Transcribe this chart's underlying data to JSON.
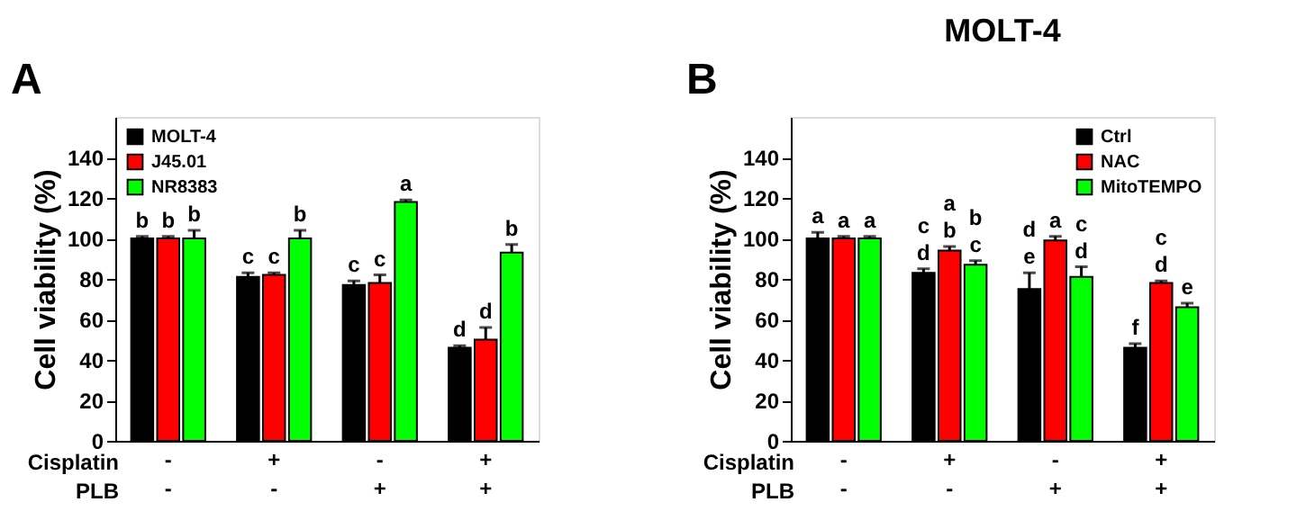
{
  "chart_data": [
    {
      "type": "bar",
      "annotations": [
        "A",
        "Cisplatin",
        "PLB"
      ],
      "ylabel": "Cell viability (%)",
      "categories": [
        "-\n-",
        "+\n-",
        "-\n+",
        "+\n+"
      ],
      "ylim": [
        0,
        160
      ],
      "yticks": [
        0,
        20,
        40,
        60,
        80,
        100,
        120,
        140
      ],
      "grid": false,
      "legend": "top left",
      "series": [
        {
          "name": "MOLT-4",
          "color": "#000000",
          "values": [
            100,
            81,
            77,
            46
          ],
          "errors": [
            [
              100,
              101
            ],
            [
              81,
              83
            ],
            [
              77,
              79
            ],
            [
              46,
              47
            ]
          ],
          "value_labels": [
            "b",
            "c",
            "c",
            "d"
          ]
        },
        {
          "name": "J45.01",
          "color": "#ff0000",
          "values": [
            100,
            82,
            78,
            50
          ],
          "errors": [
            [
              100,
              101
            ],
            [
              82,
              83
            ],
            [
              78,
              82
            ],
            [
              50,
              56
            ]
          ],
          "value_labels": [
            "b",
            "c",
            "c",
            "d"
          ]
        },
        {
          "name": "NR8383",
          "color": "#00ff00",
          "values": [
            100,
            100,
            118,
            93
          ],
          "errors": [
            [
              100,
              104
            ],
            [
              100,
              104
            ],
            [
              118,
              119
            ],
            [
              93,
              97
            ]
          ],
          "value_labels": [
            "b",
            "b",
            "a",
            "b"
          ]
        }
      ]
    },
    {
      "type": "bar",
      "title": "MOLT-4",
      "annotations": [
        "B",
        "Cisplatin",
        "PLB"
      ],
      "ylabel": "Cell viability (%)",
      "categories": [
        "-\n-",
        "+\n-",
        "-\n+",
        "+\n+"
      ],
      "ylim": [
        0,
        160
      ],
      "yticks": [
        0,
        20,
        40,
        60,
        80,
        100,
        120,
        140
      ],
      "grid": false,
      "legend": "top right",
      "series": [
        {
          "name": "Ctrl",
          "color": "#000000",
          "values": [
            100,
            83,
            75,
            46
          ],
          "errors": [
            [
              100,
              103
            ],
            [
              83,
              85
            ],
            [
              75,
              83
            ],
            [
              46,
              48
            ]
          ],
          "value_labels": [
            "a",
            "c\nd",
            "d\ne",
            "f"
          ]
        },
        {
          "name": "NAC",
          "color": "#ff0000",
          "values": [
            100,
            94,
            99,
            78
          ],
          "errors": [
            [
              100,
              101
            ],
            [
              94,
              96
            ],
            [
              99,
              101
            ],
            [
              78,
              79
            ]
          ],
          "value_labels": [
            "a",
            "a\nb",
            "a",
            "c\nd"
          ]
        },
        {
          "name": "MitoTEMPO",
          "color": "#00ff00",
          "values": [
            100,
            87,
            81,
            66
          ],
          "errors": [
            [
              100,
              101
            ],
            [
              87,
              89
            ],
            [
              81,
              86
            ],
            [
              66,
              68
            ]
          ],
          "value_labels": [
            "a",
            "b\nc",
            "c\nd",
            "e"
          ]
        }
      ]
    }
  ]
}
